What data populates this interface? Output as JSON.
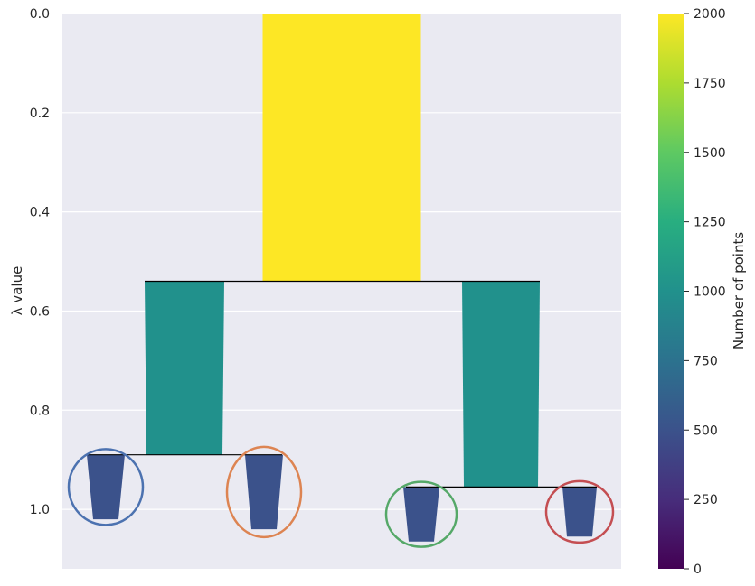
{
  "chart_data": {
    "type": "condensed_tree_dendrogram",
    "ylabel": "λ value",
    "ylim": [
      0,
      1.12
    ],
    "y_inverted": true,
    "yticks": [
      "0.0",
      "0.2",
      "0.4",
      "0.6",
      "0.8",
      "1.0"
    ],
    "ytick_values": [
      0.0,
      0.2,
      0.4,
      0.6,
      0.8,
      1.0
    ],
    "grid": true,
    "branches": [
      {
        "id": "root",
        "points": 2000,
        "lambda_start": 0.0,
        "lambda_end": 0.54
      },
      {
        "id": "left",
        "points": 1000,
        "lambda_start": 0.54,
        "lambda_end": 0.89
      },
      {
        "id": "right",
        "points": 1000,
        "lambda_start": 0.54,
        "lambda_end": 0.955
      },
      {
        "id": "cluster-1",
        "points": 500,
        "lambda_start": 0.89,
        "lambda_end": 1.02,
        "selected": true,
        "circle_color": "#4c72b0"
      },
      {
        "id": "cluster-2",
        "points": 500,
        "lambda_start": 0.89,
        "lambda_end": 1.04,
        "selected": true,
        "circle_color": "#dd8452"
      },
      {
        "id": "cluster-3",
        "points": 500,
        "lambda_start": 0.955,
        "lambda_end": 1.065,
        "selected": true,
        "circle_color": "#55a868"
      },
      {
        "id": "cluster-4",
        "points": 500,
        "lambda_start": 0.955,
        "lambda_end": 1.055,
        "selected": true,
        "circle_color": "#c44e52"
      }
    ],
    "splits": [
      {
        "lambda": 0.54,
        "parent": "root",
        "children": [
          "left",
          "right"
        ]
      },
      {
        "lambda": 0.89,
        "parent": "left",
        "children": [
          "cluster-1",
          "cluster-2"
        ]
      },
      {
        "lambda": 0.955,
        "parent": "right",
        "children": [
          "cluster-3",
          "cluster-4"
        ]
      }
    ],
    "colorbar": {
      "label": "Number of points",
      "range": [
        0,
        2000
      ],
      "ticks": [
        "0",
        "250",
        "500",
        "750",
        "1000",
        "1250",
        "1500",
        "1750",
        "2000"
      ],
      "tick_values": [
        0,
        250,
        500,
        750,
        1000,
        1250,
        1500,
        1750,
        2000
      ],
      "colormap": "viridis"
    },
    "colors": {
      "plot_background": "#eaeaf2",
      "grid": "#ffffff",
      "split_line": "#000000"
    }
  }
}
